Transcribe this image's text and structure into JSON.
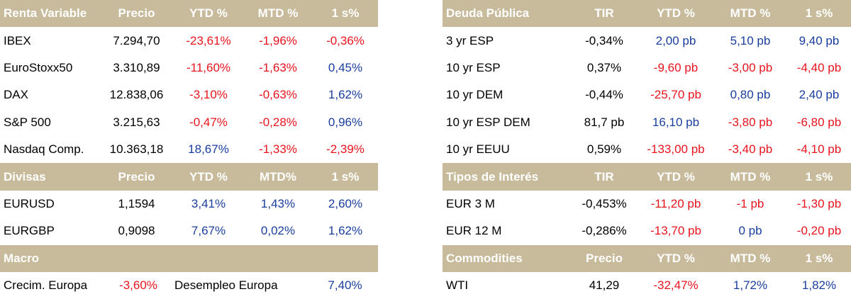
{
  "colors": {
    "header_bg": "#c8bb9b",
    "header_text": "#ffffff",
    "negative": "#e8141e",
    "positive": "#1a3e9e"
  },
  "renta_variable": {
    "headers": [
      "Renta Variable",
      "Precio",
      "YTD %",
      "MTD %",
      "1 s%"
    ],
    "rows": [
      [
        "IBEX",
        "7.294,70",
        "-23,61%",
        "-1,96%",
        "-0,36%"
      ],
      [
        "EuroStoxx50",
        "3.310,89",
        "-11,60%",
        "-1,63%",
        "0,45%"
      ],
      [
        "DAX",
        "12.838,06",
        "-3,10%",
        "-0,63%",
        "1,62%"
      ],
      [
        "S&P 500",
        "3.215,63",
        "-0,47%",
        "-0,28%",
        "0,96%"
      ],
      [
        "Nasdaq Comp.",
        "10.363,18",
        "18,67%",
        "-1,33%",
        "-2,39%"
      ]
    ]
  },
  "divisas": {
    "headers": [
      "Divisas",
      "Precio",
      "YTD %",
      "MTD%",
      "1 s%"
    ],
    "rows": [
      [
        "EURUSD",
        "1,1594",
        "3,41%",
        "1,43%",
        "2,60%"
      ],
      [
        "EURGBP",
        "0,9098",
        "7,67%",
        "0,02%",
        "1,62%"
      ]
    ]
  },
  "macro": {
    "header": "Macro",
    "row": [
      "Crecim. Europa",
      "-3,60%",
      "Desempleo Europa",
      "7,40%"
    ]
  },
  "deuda_publica": {
    "headers": [
      "Deuda Pública",
      "TIR",
      "YTD %",
      "MTD %",
      "1 s%"
    ],
    "rows": [
      [
        "3 yr ESP",
        "-0,34%",
        "2,00 pb",
        "5,10 pb",
        "9,40 pb"
      ],
      [
        "10 yr ESP",
        "0,37%",
        "-9,60 pb",
        "-3,00 pb",
        "-4,40 pb"
      ],
      [
        "10 yr DEM",
        "-0,44%",
        "-25,70 pb",
        "0,80 pb",
        "2,40 pb"
      ],
      [
        "10 yr ESP DEM",
        "81,7 pb",
        "16,10 pb",
        "-3,80 pb",
        "-6,80 pb"
      ],
      [
        "10 yr EEUU",
        "0,59%",
        "-133,00 pb",
        "-3,40 pb",
        "-4,10 pb"
      ]
    ]
  },
  "tipos_interes": {
    "headers": [
      "Tipos de Interés",
      "TIR",
      "YTD %",
      "MTD %",
      "1 s%"
    ],
    "rows": [
      [
        "EUR 3 M",
        "-0,453%",
        "-11,20 pb",
        "-1 pb",
        "-1,30 pb"
      ],
      [
        "EUR 12 M",
        "-0,286%",
        "-13,70 pb",
        "0 pb",
        "-0,20 pb"
      ]
    ]
  },
  "commodities": {
    "headers": [
      "Commodities",
      "Precio",
      "YTD %",
      "MTD %",
      "1 s%"
    ],
    "rows": [
      [
        "WTI",
        "41,29",
        "-32,47%",
        "1,72%",
        "1,82%"
      ]
    ]
  }
}
